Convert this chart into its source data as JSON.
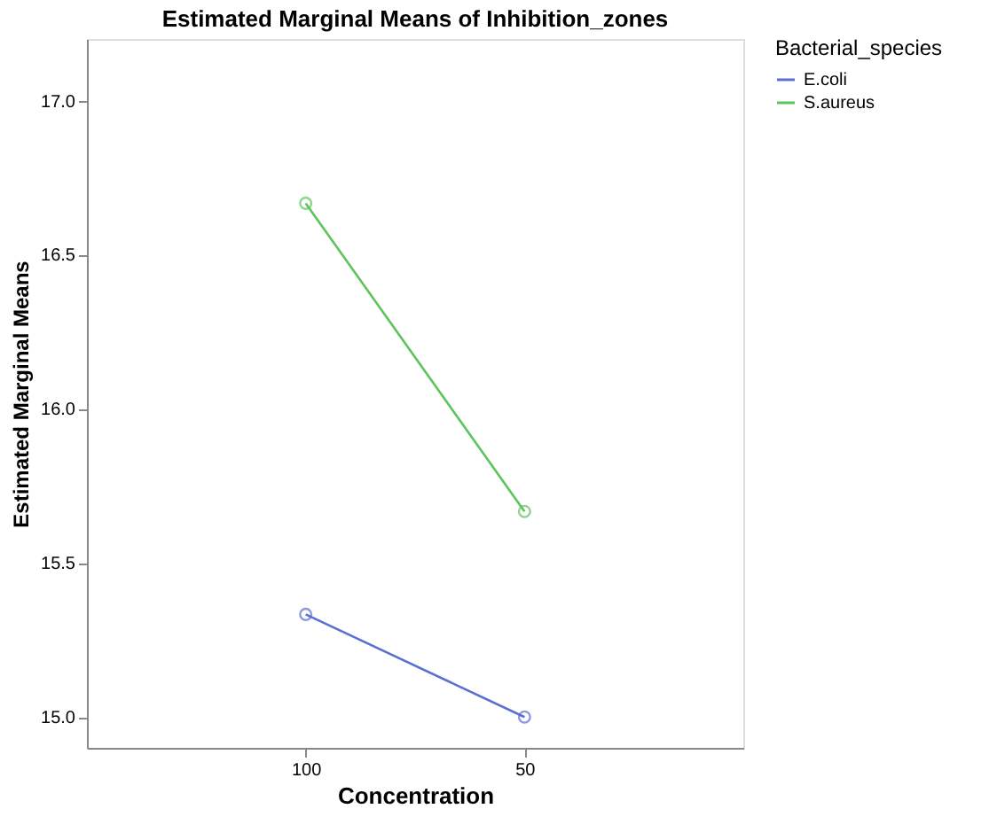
{
  "chart_data": {
    "type": "line",
    "title": "Estimated Marginal Means of Inhibition_zones",
    "xlabel": "Concentration",
    "ylabel": "Estimated Marginal Means",
    "legend_title": "Bacterial_species",
    "categories": [
      "100",
      "50"
    ],
    "series": [
      {
        "name": "E.coli",
        "color": "#5b6fd0",
        "values": [
          15.333,
          15.0
        ]
      },
      {
        "name": "S.aureus",
        "color": "#5cc45c",
        "values": [
          16.667,
          15.667
        ]
      }
    ],
    "ylim": [
      14.9,
      17.2
    ],
    "yticks": [
      {
        "value": 15,
        "label": "15.0"
      },
      15.5,
      {
        "value": 16,
        "label": "16.0"
      },
      16.5,
      {
        "value": 17,
        "label": "17.0"
      }
    ],
    "legend": "top right",
    "grid": false,
    "marker": "circle",
    "line_style": "solid"
  }
}
